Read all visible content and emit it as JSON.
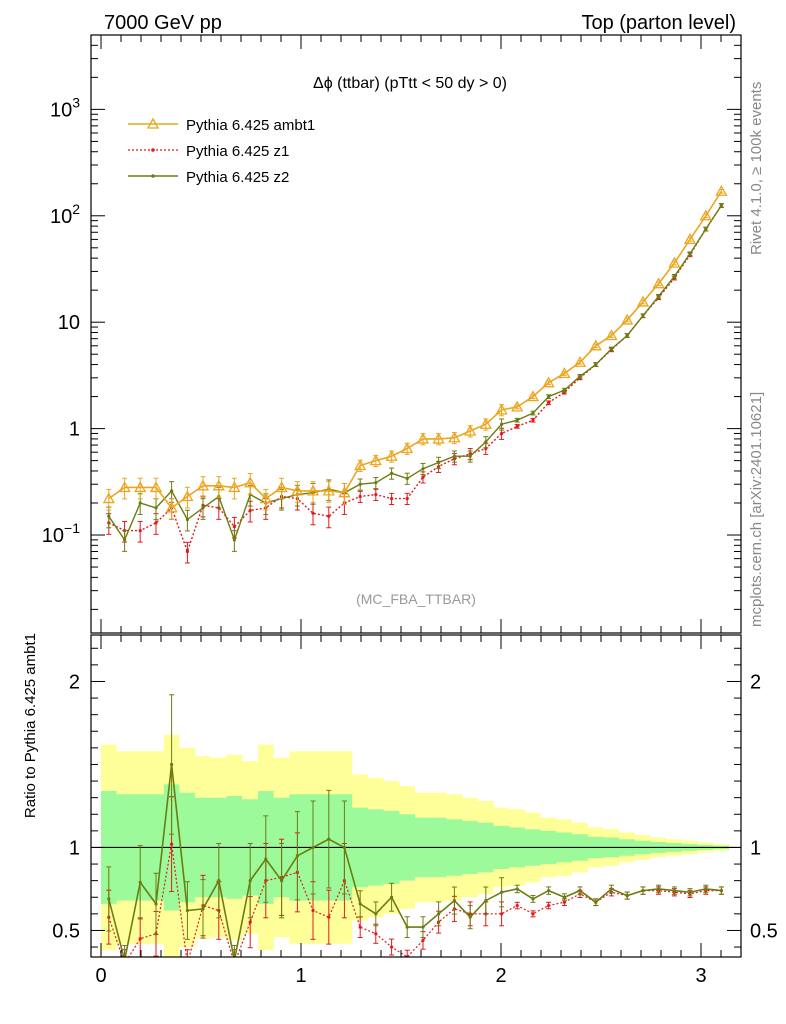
{
  "header": {
    "left": "7000 GeV pp",
    "right": "Top (parton level)"
  },
  "side_labels": {
    "rivet": "Rivet 4.1.0, ≥ 100k events",
    "mcplots": "mcplots.cern.ch [arXiv:2401.10621]"
  },
  "plot_title": "Δϕ (ttbar) (pTtt < 50 dy > 0)",
  "analysis_id": "(MC_FBA_TTBAR)",
  "colors": {
    "ambt1": "#eca51e",
    "z1": "#e31a1c",
    "z2": "#6b7d10",
    "band_outer": "#ffff9a",
    "band_inner": "#9cfa9a"
  },
  "chart_data": [
    {
      "type": "line",
      "panel": "main",
      "yscale": "log",
      "xlim": [
        -0.05,
        3.2
      ],
      "ylim": [
        0.012,
        5000
      ],
      "y_tick_labels": [
        "10^-1",
        "1",
        "10",
        "10^2",
        "10^3"
      ],
      "x": [
        0.039,
        0.118,
        0.196,
        0.275,
        0.353,
        0.432,
        0.51,
        0.589,
        0.667,
        0.746,
        0.824,
        0.903,
        0.982,
        1.06,
        1.139,
        1.217,
        1.296,
        1.374,
        1.453,
        1.531,
        1.61,
        1.688,
        1.767,
        1.846,
        1.924,
        2.003,
        2.081,
        2.16,
        2.238,
        2.317,
        2.395,
        2.474,
        2.552,
        2.631,
        2.71,
        2.788,
        2.867,
        2.945,
        3.024,
        3.102
      ],
      "series": [
        {
          "name": "Pythia 6.425 ambt1",
          "values": [
            0.22,
            0.28,
            0.28,
            0.28,
            0.18,
            0.23,
            0.29,
            0.29,
            0.28,
            0.31,
            0.22,
            0.28,
            0.26,
            0.26,
            0.26,
            0.25,
            0.45,
            0.5,
            0.55,
            0.65,
            0.8,
            0.8,
            0.82,
            0.95,
            1.1,
            1.5,
            1.6,
            2.0,
            2.7,
            3.3,
            4.2,
            6.0,
            7.5,
            10.5,
            15.5,
            23,
            36,
            60,
            100,
            170
          ]
        },
        {
          "name": "Pythia 6.425 z1",
          "values": [
            0.13,
            0.11,
            0.11,
            0.13,
            0.18,
            0.07,
            0.19,
            0.18,
            0.12,
            0.17,
            0.18,
            0.23,
            0.22,
            0.16,
            0.15,
            0.2,
            0.23,
            0.24,
            0.22,
            0.22,
            0.35,
            0.44,
            0.52,
            0.58,
            0.65,
            0.9,
            1.05,
            1.2,
            1.75,
            2.2,
            3.0,
            4.0,
            5.5,
            7.5,
            11.5,
            17,
            26,
            43,
            75,
            125
          ]
        },
        {
          "name": "Pythia 6.425 z2",
          "values": [
            0.15,
            0.09,
            0.2,
            0.18,
            0.26,
            0.14,
            0.18,
            0.23,
            0.09,
            0.24,
            0.2,
            0.22,
            0.24,
            0.25,
            0.27,
            0.25,
            0.3,
            0.31,
            0.38,
            0.34,
            0.42,
            0.48,
            0.55,
            0.55,
            0.75,
            1.1,
            1.2,
            1.4,
            2.0,
            2.3,
            3.1,
            4.0,
            5.6,
            7.5,
            11.5,
            17.5,
            27,
            44,
            75,
            125
          ]
        }
      ],
      "legend": [
        "Pythia 6.425 ambt1",
        "Pythia 6.425 z1",
        "Pythia 6.425 z2"
      ]
    },
    {
      "type": "line",
      "panel": "ratio",
      "ylabel": "Ratio to Pythia 6.425 ambt1",
      "xlim": [
        -0.05,
        3.2
      ],
      "ylim": [
        0.34,
        2.28
      ],
      "y_ticks": [
        0.5,
        1,
        2
      ],
      "y_tick_labels": [
        "0.5",
        "1",
        "2"
      ],
      "x_ticks": [
        0,
        1,
        2,
        3
      ],
      "x_tick_labels": [
        "0",
        "1",
        "2",
        "3"
      ],
      "reference_line": 1,
      "band_x": [
        0.0,
        0.078,
        0.157,
        0.235,
        0.314,
        0.392,
        0.471,
        0.549,
        0.628,
        0.706,
        0.785,
        0.863,
        0.942,
        1.021,
        1.099,
        1.178,
        1.256,
        1.335,
        1.413,
        1.492,
        1.57,
        1.649,
        1.727,
        1.806,
        1.884,
        1.963,
        2.041,
        2.12,
        2.198,
        2.277,
        2.355,
        2.434,
        2.512,
        2.591,
        2.669,
        2.748,
        2.826,
        2.905,
        2.983,
        3.062,
        3.14
      ],
      "band_outer_half": [
        0.62,
        0.58,
        0.58,
        0.58,
        0.68,
        0.6,
        0.55,
        0.54,
        0.56,
        0.52,
        0.62,
        0.54,
        0.58,
        0.58,
        0.58,
        0.58,
        0.44,
        0.42,
        0.4,
        0.37,
        0.33,
        0.33,
        0.32,
        0.3,
        0.28,
        0.24,
        0.23,
        0.21,
        0.18,
        0.17,
        0.15,
        0.12,
        0.11,
        0.09,
        0.075,
        0.06,
        0.05,
        0.04,
        0.03,
        0.02
      ],
      "band_inner_half": [
        0.34,
        0.32,
        0.32,
        0.32,
        0.38,
        0.33,
        0.3,
        0.3,
        0.31,
        0.29,
        0.34,
        0.3,
        0.32,
        0.32,
        0.32,
        0.32,
        0.24,
        0.23,
        0.22,
        0.2,
        0.18,
        0.18,
        0.17,
        0.16,
        0.15,
        0.13,
        0.12,
        0.11,
        0.1,
        0.09,
        0.08,
        0.065,
        0.06,
        0.05,
        0.04,
        0.033,
        0.027,
        0.02,
        0.015,
        0.01
      ],
      "series": [
        {
          "name": "Pythia 6.425 z1",
          "values": [
            0.58,
            0.3,
            0.45,
            0.48,
            1.02,
            0.3,
            0.65,
            0.62,
            0.3,
            0.55,
            0.8,
            0.82,
            0.85,
            0.62,
            0.58,
            0.8,
            0.52,
            0.48,
            0.4,
            0.34,
            0.44,
            0.55,
            0.63,
            0.6,
            0.6,
            0.6,
            0.65,
            0.6,
            0.65,
            0.67,
            0.72,
            0.67,
            0.73,
            0.71,
            0.74,
            0.74,
            0.73,
            0.72,
            0.74,
            0.74
          ]
        },
        {
          "name": "Pythia 6.425 z2",
          "values": [
            0.69,
            0.32,
            0.79,
            0.66,
            1.5,
            0.62,
            0.63,
            0.8,
            0.32,
            0.8,
            0.93,
            0.8,
            0.95,
            1.0,
            1.05,
            1.0,
            0.66,
            0.6,
            0.7,
            0.52,
            0.52,
            0.6,
            0.68,
            0.58,
            0.68,
            0.73,
            0.75,
            0.69,
            0.74,
            0.7,
            0.74,
            0.67,
            0.75,
            0.71,
            0.74,
            0.75,
            0.74,
            0.73,
            0.75,
            0.74
          ]
        }
      ]
    }
  ]
}
